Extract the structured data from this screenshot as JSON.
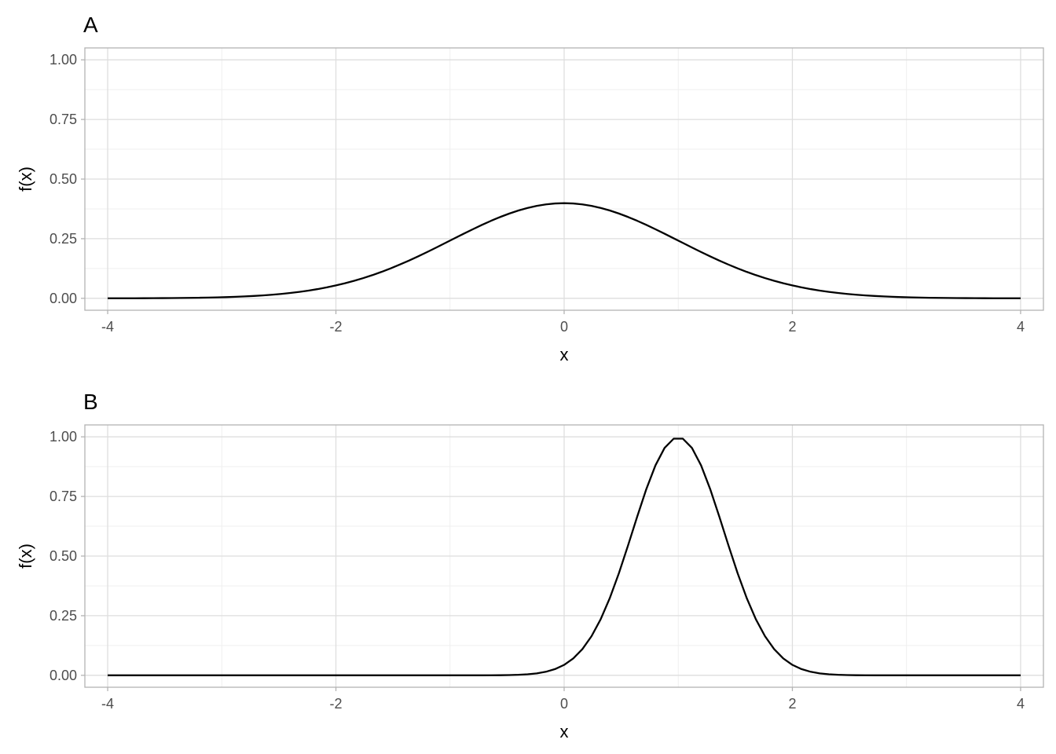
{
  "chart_data": [
    {
      "type": "line",
      "tag": "A",
      "xlabel": "x",
      "ylabel": "f(x)",
      "xlim": [
        -4.2,
        4.2
      ],
      "ylim": [
        -0.05,
        1.05
      ],
      "xticks": [
        "-4",
        "-2",
        "0",
        "2",
        "4"
      ],
      "yticks": [
        "0.00",
        "0.25",
        "0.50",
        "0.75",
        "1.00"
      ],
      "grid": true,
      "series": [
        {
          "function": "normal density",
          "mean": 0,
          "sd": 1,
          "x_range": [
            -4,
            4
          ],
          "n_points": 101,
          "peak_y": 0.399,
          "color": "#000000"
        }
      ]
    },
    {
      "type": "line",
      "tag": "B",
      "xlabel": "x",
      "ylabel": "f(x)",
      "xlim": [
        -4.2,
        4.2
      ],
      "ylim": [
        -0.05,
        1.05
      ],
      "xticks": [
        "-4",
        "-2",
        "0",
        "2",
        "4"
      ],
      "yticks": [
        "0.00",
        "0.25",
        "0.50",
        "0.75",
        "1.00"
      ],
      "grid": true,
      "series": [
        {
          "function": "normal density",
          "mean": 1,
          "sd": 0.4,
          "x_range": [
            -4,
            4
          ],
          "n_points": 101,
          "peak_y": 0.997,
          "color": "#000000"
        }
      ]
    }
  ]
}
